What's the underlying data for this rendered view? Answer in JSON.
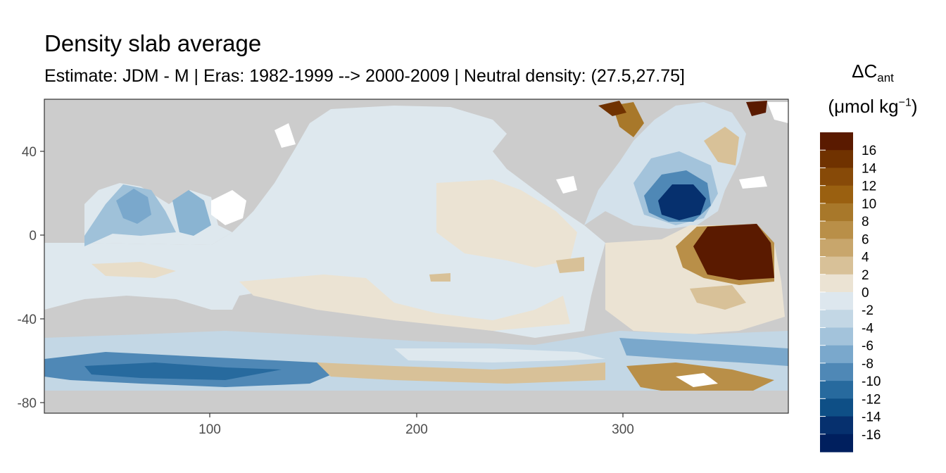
{
  "title": "Density slab average",
  "subtitle": "Estimate: JDM - M | Eras: 1982-1999 --> 2000-2009 | Neutral density: (27.5,27.75]",
  "x_axis": {
    "ticks": [
      "100",
      "200",
      "300"
    ]
  },
  "y_axis": {
    "ticks": [
      "40",
      "0",
      "-40",
      "-80"
    ]
  },
  "legend": {
    "title_line1": "ΔC",
    "title_sub": "ant",
    "title_line2": "(μmol kg",
    "title_sup": "−1",
    "title_close": ")",
    "labels": [
      "16",
      "14",
      "12",
      "10",
      "8",
      "6",
      "4",
      "2",
      "0",
      "-2",
      "-4",
      "-6",
      "-8",
      "-10",
      "-12",
      "-14",
      "-16"
    ],
    "colors": [
      "#5a1a00",
      "#703200",
      "#874a08",
      "#9a6010",
      "#a8782a",
      "#b98f48",
      "#c8a66c",
      "#d8c198",
      "#ebe3d3",
      "#dde7ee",
      "#c3d7e5",
      "#a3c3db",
      "#7aa8cc",
      "#4f88b6",
      "#276a9e",
      "#0e4f86",
      "#06306e",
      "#001f5e"
    ]
  },
  "chart_data": {
    "type": "heatmap",
    "title": "Density slab average",
    "subtitle": "Estimate: JDM - M | Eras: 1982-1999 --> 2000-2009 | Neutral density: (27.5,27.75]",
    "xlabel": "",
    "ylabel": "",
    "xlim": [
      20,
      380
    ],
    "ylim": [
      -85,
      65
    ],
    "x_ticks": [
      100,
      200,
      300
    ],
    "y_ticks": [
      40,
      0,
      -40,
      -80
    ],
    "legend_title": "ΔCant (μmol kg−1)",
    "color_scale": {
      "min": -18,
      "max": 18,
      "step": 2,
      "palette": "blue-to-brown diverging"
    },
    "grid": false,
    "legend_placement": "right"
  }
}
